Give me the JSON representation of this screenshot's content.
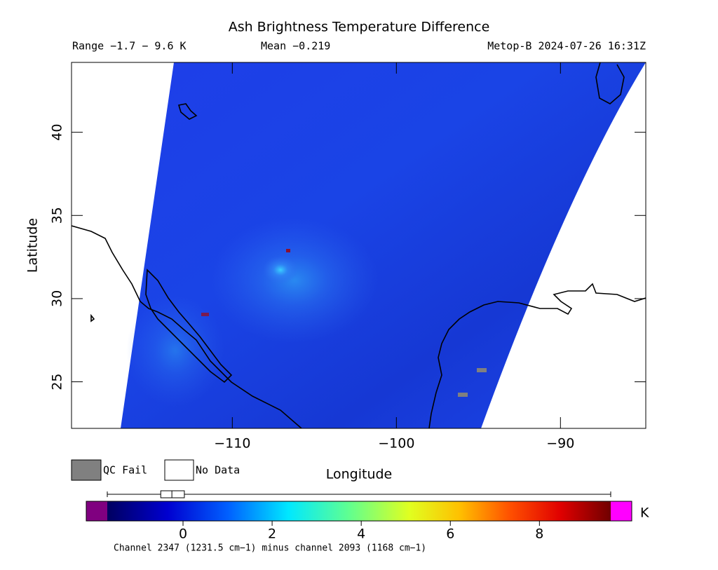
{
  "header": {
    "title": "Ash Brightness Temperature Difference",
    "range": "Range −1.7 − 9.6 K",
    "mean": "Mean −0.219",
    "source": "Metop-B 2024-07-26 16:31Z"
  },
  "map": {
    "x_label": "Longitude",
    "y_label": "Latitude",
    "xlim": [
      -119.8,
      -84.8
    ],
    "ylim": [
      22.2,
      44.2
    ],
    "xticks": [
      {
        "value": -110,
        "label": "−110"
      },
      {
        "value": -100,
        "label": "−100"
      },
      {
        "value": -90,
        "label": "−90"
      }
    ],
    "yticks": [
      25,
      30,
      35,
      40
    ]
  },
  "legend": {
    "qc_fail": "QC Fail",
    "no_data": "No Data"
  },
  "colorbar": {
    "lim": [
      -1.7,
      9.6
    ],
    "ticks": [
      0,
      2,
      4,
      6,
      8
    ],
    "unit": "K",
    "box": {
      "min": -1.7,
      "q1": -0.5,
      "median": -0.25,
      "q3": 0.03,
      "max": 9.6
    }
  },
  "footer": "Channel 2347 (1231.5 cm−1) minus channel 2093 (1168 cm−1)"
}
